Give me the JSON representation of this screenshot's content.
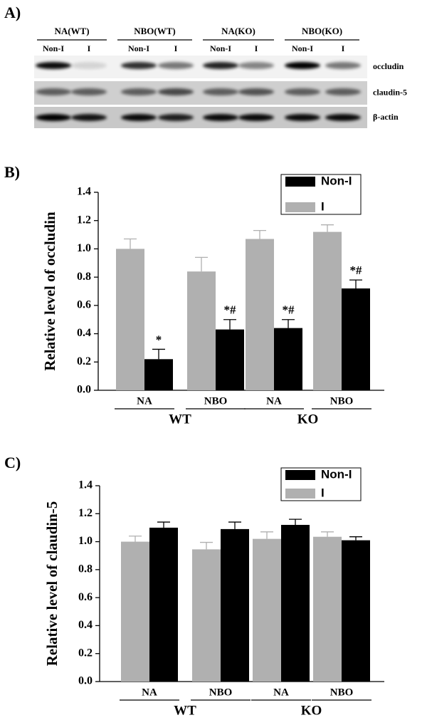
{
  "blot": {
    "panel_label": "A)",
    "groups": [
      "NA(WT)",
      "NBO(WT)",
      "NA(KO)",
      "NBO(KO)"
    ],
    "lanes": [
      "Non-I",
      "I",
      "Non-I",
      "I",
      "Non-I",
      "I",
      "Non-I",
      "I"
    ],
    "rows": [
      "occludin",
      "claudin-5",
      "β-actin"
    ]
  },
  "chart_data": [
    {
      "type": "bar",
      "panel_label": "B)",
      "y_label": "Relative level of occludin",
      "categories": [
        "NA",
        "NBO",
        "NA",
        "NBO"
      ],
      "groups": [
        "WT",
        "KO"
      ],
      "series": [
        {
          "name": "Non-I",
          "color": "#000000",
          "values": [
            0.22,
            0.43,
            0.44,
            0.72
          ],
          "errors": [
            0.07,
            0.07,
            0.06,
            0.06
          ],
          "annotations": [
            "*",
            "*#",
            "*#",
            "*#"
          ]
        },
        {
          "name": "I",
          "color": "#b0b0b0",
          "values": [
            1.0,
            0.84,
            1.07,
            1.12
          ],
          "errors": [
            0.07,
            0.1,
            0.06,
            0.05
          ]
        }
      ],
      "ylim": [
        0,
        1.4
      ],
      "yticks": [
        {
          "value": 0,
          "label": "0.0"
        },
        0.2,
        0.4,
        0.6,
        0.8,
        {
          "value": 1,
          "label": "1.0"
        },
        1.2,
        1.4
      ],
      "legend": "top-right",
      "grid": false
    },
    {
      "type": "bar",
      "panel_label": "C)",
      "y_label": "Relative level of claudin-5",
      "categories": [
        "NA",
        "NBO",
        "NA",
        "NBO"
      ],
      "groups": [
        "WT",
        "KO"
      ],
      "series": [
        {
          "name": "Non-I",
          "color": "#000000",
          "values": [
            1.1,
            1.09,
            1.12,
            1.01
          ],
          "errors": [
            0.04,
            0.05,
            0.04,
            0.025
          ]
        },
        {
          "name": "I",
          "color": "#b0b0b0",
          "values": [
            1.0,
            0.945,
            1.02,
            1.035
          ],
          "errors": [
            0.04,
            0.05,
            0.05,
            0.035
          ]
        }
      ],
      "ylim": [
        0,
        1.4
      ],
      "yticks": [
        {
          "value": 0,
          "label": "0.0"
        },
        0.2,
        0.4,
        0.6,
        0.8,
        {
          "value": 1,
          "label": "1.0"
        },
        1.2,
        1.4
      ],
      "legend": "top-right",
      "grid": false
    }
  ]
}
